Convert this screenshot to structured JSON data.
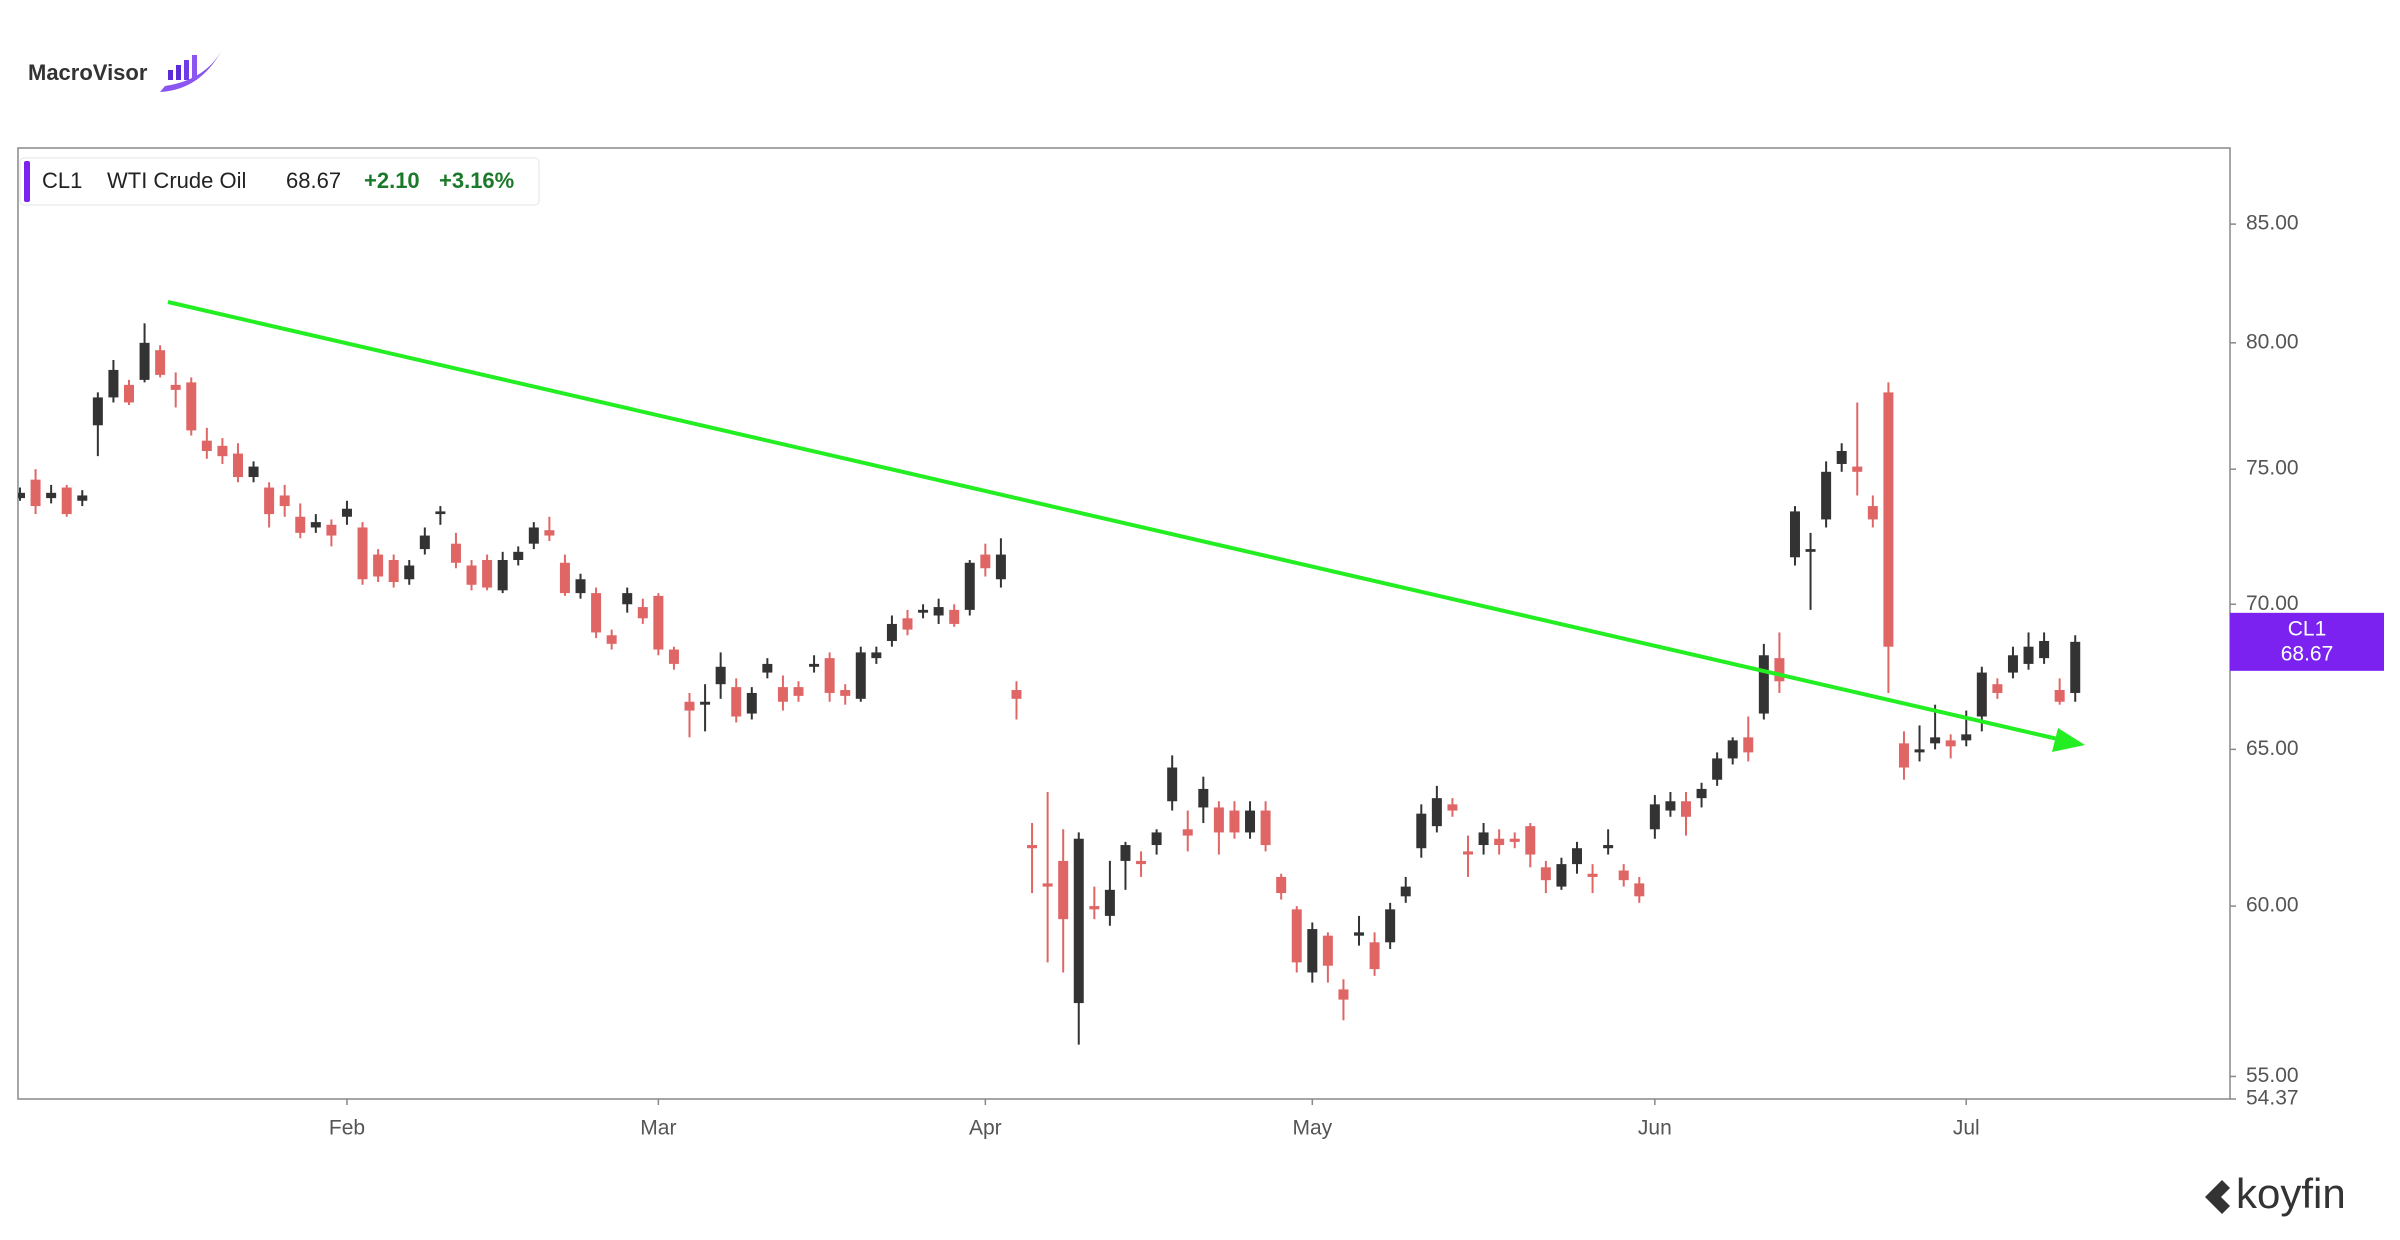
{
  "branding": {
    "top_left": "MacroVisor",
    "bottom_right": "koyfin"
  },
  "chart_data": {
    "type": "candlestick",
    "log_scale": true,
    "grid": false,
    "up_color": "#333333",
    "down_color": "#e06666",
    "tag_color": "#7b22f0",
    "info": {
      "full_name": "WTI Crude Oil",
      "change": "+2.10",
      "change_pct": "+3.16%"
    },
    "categories": [
      null,
      null,
      null,
      null,
      null,
      null,
      null,
      null,
      null,
      null,
      null,
      null,
      null,
      null,
      null,
      null,
      null,
      null,
      null,
      null,
      null,
      "Feb",
      null,
      null,
      null,
      null,
      null,
      null,
      null,
      null,
      null,
      null,
      null,
      null,
      null,
      null,
      null,
      null,
      null,
      null,
      null,
      "Mar",
      null,
      null,
      null,
      null,
      null,
      null,
      null,
      null,
      null,
      null,
      null,
      null,
      null,
      null,
      null,
      null,
      null,
      null,
      null,
      null,
      "Apr",
      null,
      null,
      null,
      null,
      null,
      null,
      null,
      null,
      null,
      null,
      null,
      null,
      null,
      null,
      null,
      null,
      null,
      null,
      null,
      null,
      "May",
      null,
      null,
      null,
      null,
      null,
      null,
      null,
      null,
      null,
      null,
      null,
      null,
      null,
      null,
      null,
      null,
      null,
      null,
      null,
      null,
      null,
      "Jun",
      null,
      null,
      null,
      null,
      null,
      null,
      null,
      null,
      null,
      null,
      null,
      null,
      null,
      null,
      null,
      null,
      null,
      null,
      null,
      "Jul",
      null,
      null,
      null,
      null,
      null,
      null,
      null
    ],
    "series": [
      {
        "name": "CL1",
        "open": [
          73.9,
          74.6,
          73.9,
          74.3,
          73.8,
          76.7,
          77.8,
          78.3,
          78.5,
          79.7,
          78.3,
          78.4,
          76.1,
          75.9,
          75.6,
          74.7,
          74.3,
          74.0,
          73.2,
          72.8,
          72.9,
          73.2,
          72.8,
          71.8,
          71.6,
          70.9,
          72.0,
          73.3,
          72.2,
          71.4,
          71.6,
          70.5,
          71.6,
          72.2,
          72.7,
          71.5,
          70.4,
          70.4,
          68.9,
          70.0,
          69.9,
          70.3,
          68.4,
          66.6,
          66.5,
          67.2,
          67.1,
          66.2,
          67.6,
          67.1,
          67.1,
          67.8,
          68.1,
          67.0,
          66.7,
          68.1,
          68.7,
          69.5,
          69.7,
          69.6,
          69.8,
          69.8,
          71.8,
          70.9,
          67.0,
          61.9,
          60.7,
          61.4,
          57.1,
          60.0,
          59.7,
          61.4,
          61.4,
          61.9,
          63.3,
          62.4,
          63.1,
          63.1,
          63.0,
          62.3,
          63.0,
          60.9,
          59.9,
          58.0,
          59.1,
          57.5,
          59.1,
          58.9,
          58.9,
          60.3,
          61.8,
          62.5,
          63.2,
          61.7,
          61.9,
          62.1,
          62.1,
          62.5,
          61.2,
          60.6,
          61.3,
          61.0,
          61.8,
          61.1,
          60.7,
          62.4,
          63.0,
          63.3,
          63.4,
          64.0,
          64.7,
          65.4,
          66.2,
          68.1,
          71.7,
          71.9,
          73.1,
          75.2,
          75.1,
          73.6,
          78.0,
          65.2,
          64.9,
          65.2,
          65.3,
          65.3,
          66.1,
          67.2,
          67.6,
          67.9,
          68.1,
          67.0,
          66.9
        ],
        "high": [
          74.3,
          75.0,
          74.4,
          74.4,
          74.2,
          78.0,
          79.3,
          78.5,
          80.8,
          79.9,
          78.8,
          78.6,
          76.6,
          76.2,
          76.0,
          75.3,
          74.5,
          74.4,
          73.7,
          73.3,
          73.1,
          73.8,
          73.0,
          72.0,
          71.8,
          71.6,
          72.8,
          73.6,
          72.6,
          71.6,
          71.8,
          71.9,
          72.1,
          73.0,
          73.2,
          71.8,
          71.1,
          70.6,
          69.1,
          70.6,
          70.2,
          70.4,
          68.5,
          66.9,
          67.2,
          68.3,
          67.4,
          67.1,
          68.1,
          67.5,
          67.3,
          68.2,
          68.3,
          67.2,
          68.5,
          68.5,
          69.6,
          69.8,
          70.0,
          70.2,
          70.0,
          71.6,
          72.2,
          72.4,
          67.3,
          62.6,
          63.6,
          62.4,
          62.3,
          60.6,
          61.4,
          62.0,
          61.7,
          62.4,
          64.8,
          63.0,
          64.1,
          63.3,
          63.3,
          63.3,
          63.3,
          61.0,
          60.0,
          59.5,
          59.2,
          57.8,
          59.7,
          59.2,
          60.1,
          60.9,
          63.2,
          63.8,
          63.4,
          62.2,
          62.6,
          62.4,
          62.3,
          62.6,
          61.4,
          61.5,
          62.0,
          61.3,
          62.4,
          61.3,
          60.9,
          63.5,
          63.6,
          63.6,
          63.9,
          64.9,
          65.4,
          66.1,
          68.6,
          69.0,
          73.6,
          72.6,
          75.3,
          76.0,
          77.6,
          74.0,
          78.4,
          65.6,
          65.8,
          66.5,
          65.5,
          66.3,
          67.8,
          67.4,
          68.5,
          69.0,
          69.0,
          67.4,
          68.9
        ],
        "low": [
          73.8,
          73.3,
          73.7,
          73.2,
          73.6,
          75.5,
          77.6,
          77.5,
          78.4,
          78.6,
          77.4,
          76.3,
          75.4,
          75.2,
          74.5,
          74.5,
          72.8,
          73.2,
          72.4,
          72.6,
          72.1,
          72.9,
          70.7,
          70.8,
          70.6,
          70.7,
          71.8,
          72.9,
          71.3,
          70.5,
          70.5,
          70.4,
          71.4,
          72.0,
          72.3,
          70.3,
          70.2,
          68.8,
          68.4,
          69.7,
          69.3,
          68.2,
          67.7,
          65.4,
          65.6,
          66.7,
          65.9,
          66.0,
          67.4,
          66.3,
          66.6,
          67.6,
          66.6,
          66.5,
          66.6,
          67.9,
          68.5,
          68.9,
          69.5,
          69.3,
          69.2,
          69.6,
          71.0,
          70.6,
          66.0,
          60.4,
          58.3,
          58.0,
          55.9,
          59.6,
          59.4,
          60.5,
          60.9,
          61.6,
          63.0,
          61.7,
          62.6,
          61.6,
          62.1,
          62.1,
          61.7,
          60.2,
          58.0,
          57.7,
          57.7,
          56.6,
          58.8,
          57.9,
          58.7,
          60.1,
          61.5,
          62.3,
          62.8,
          60.9,
          61.6,
          61.6,
          61.8,
          61.2,
          60.4,
          60.5,
          61.0,
          60.4,
          61.6,
          60.6,
          60.1,
          62.1,
          62.8,
          62.2,
          63.1,
          63.8,
          64.5,
          64.6,
          66.0,
          66.9,
          71.4,
          69.8,
          72.8,
          74.9,
          74.0,
          72.8,
          66.9,
          64.0,
          64.6,
          65.0,
          64.7,
          65.1,
          65.6,
          66.7,
          67.4,
          67.7,
          67.9,
          66.5,
          66.6
        ],
        "close": [
          74.1,
          73.6,
          74.1,
          73.3,
          74.0,
          77.8,
          78.9,
          77.6,
          80.0,
          78.7,
          78.1,
          76.5,
          75.7,
          75.5,
          74.7,
          75.1,
          73.3,
          73.6,
          72.6,
          73.0,
          72.5,
          73.5,
          70.9,
          71.0,
          70.8,
          71.4,
          72.5,
          73.4,
          71.5,
          70.7,
          70.6,
          71.6,
          71.9,
          72.8,
          72.5,
          70.4,
          70.9,
          69.0,
          68.6,
          70.4,
          69.5,
          68.4,
          67.9,
          66.3,
          66.6,
          67.8,
          66.1,
          66.9,
          67.9,
          66.6,
          66.8,
          67.9,
          66.9,
          66.8,
          68.3,
          68.3,
          69.3,
          69.1,
          69.8,
          69.9,
          69.3,
          71.5,
          71.3,
          71.8,
          66.7,
          61.8,
          60.6,
          59.6,
          62.1,
          59.9,
          60.5,
          61.9,
          61.3,
          62.3,
          64.4,
          62.2,
          63.7,
          62.3,
          62.3,
          63.0,
          61.9,
          60.4,
          58.3,
          59.3,
          58.2,
          57.2,
          59.2,
          58.1,
          59.9,
          60.6,
          62.9,
          63.4,
          63.0,
          61.6,
          62.3,
          61.9,
          62.0,
          61.6,
          60.8,
          61.3,
          61.8,
          60.9,
          61.9,
          60.8,
          60.3,
          63.2,
          63.3,
          62.8,
          63.7,
          64.7,
          65.3,
          64.9,
          68.2,
          67.3,
          73.4,
          72.0,
          74.9,
          75.7,
          74.9,
          73.1,
          68.5,
          64.4,
          65.0,
          65.4,
          65.1,
          65.5,
          67.6,
          66.9,
          68.2,
          68.5,
          68.7,
          66.6,
          68.67
        ]
      }
    ],
    "ylim": [
      54.37,
      88.37
    ],
    "yticks": [
      {
        "value": 54.37,
        "label": "54.37"
      },
      {
        "value": 55,
        "label": "55.00"
      },
      {
        "value": 60,
        "label": "60.00"
      },
      {
        "value": 65,
        "label": "65.00"
      },
      {
        "value": 70,
        "label": "70.00"
      },
      {
        "value": 75,
        "label": "75.00"
      },
      {
        "value": 80,
        "label": "80.00"
      },
      {
        "value": 85,
        "label": "85.00"
      }
    ]
  }
}
